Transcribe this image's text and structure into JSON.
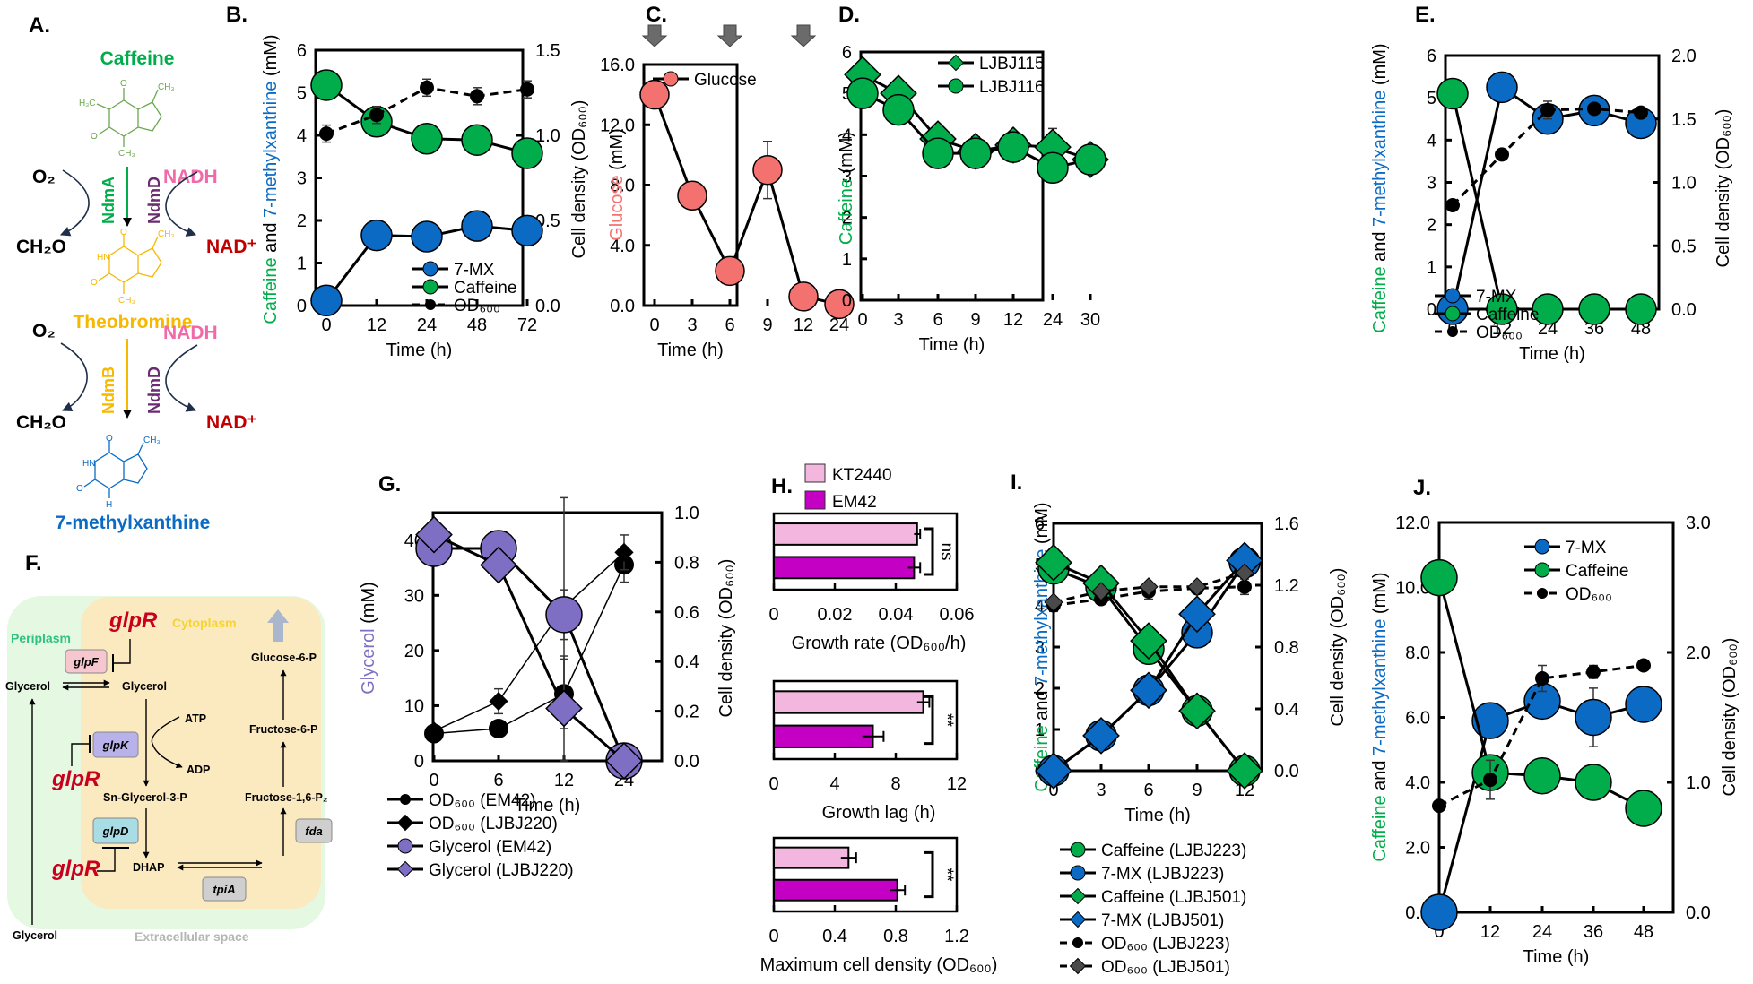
{
  "colors": {
    "caffeine": "#00ad4a",
    "mx": "#0b6bc4",
    "theobromine": "#f7b800",
    "nadh": "#f06aa8",
    "nad": "#c00000",
    "ndmD": "#6a2c70",
    "glucose": "#f3726f",
    "glycerol": "#7f6fc4",
    "kt2440": "#f3b6de",
    "em42": "#c400c4",
    "glpR": "#c8001e",
    "periplasm_bg": "#e5f8e2",
    "cytoplasm_bg": "#fbe9bf",
    "periplasm_text": "#2ec27e",
    "cytoplasm_text": "#f5d431",
    "extracellular_text": "#b5b5b5",
    "arrow_gray": "#6b6b6b"
  },
  "panel_a": {
    "label": "A.",
    "caffeine": "Caffeine",
    "theobromine": "Theobromine",
    "mx": "7-methylxanthine",
    "o2": "O₂",
    "ch2o": "CH₂O",
    "nadh": "NADH",
    "nad": "NAD⁺",
    "enzymes": [
      "NdmA",
      "NdmD",
      "NdmB",
      "NdmD"
    ],
    "atoms": {
      "o": "O",
      "n": "N",
      "ch3": "CH₃",
      "h3c": "H₃C",
      "hn": "HN",
      "h": "H"
    }
  },
  "panel_f": {
    "label": "F.",
    "periplasm": "Periplasm",
    "cytoplasm": "Cytoplasm",
    "extracellular": "Extracellular space",
    "glpR": "glpR",
    "genes": {
      "glpF": "glpF",
      "glpK": "glpK",
      "glpD": "glpD",
      "tpiA": "tpiA",
      "fda": "fda"
    },
    "metabolites": {
      "glycerol": "Glycerol",
      "atp": "ATP",
      "adp": "ADP",
      "g3p": "Sn-Glycerol-3-P",
      "dhap": "DHAP",
      "g6p": "Glucose-6-P",
      "f6p": "Fructose-6-P",
      "fbp": "Fructose-1,6-P₂"
    }
  },
  "chart_data": [
    {
      "id": "B",
      "label": "B.",
      "type": "line",
      "xlabel": "Time (h)",
      "ylabel_parts": [
        "Caffeine",
        " and ",
        "7-methylxanthine",
        " (mM)"
      ],
      "y2label": "Cell density (OD₆₀₀)",
      "categories": [
        "0",
        "12",
        "24",
        "48",
        "72"
      ],
      "ylim": [
        0,
        6
      ],
      "yticks": [
        "0",
        "1",
        "2",
        "3",
        "4",
        "5",
        "6"
      ],
      "y2lim": [
        0,
        1.5
      ],
      "y2ticks": [
        "0.0",
        "0.5",
        "1.0",
        "1.5"
      ],
      "legend_position": "bottom-right",
      "series": [
        {
          "name": "7-MX",
          "values": [
            0.12,
            1.65,
            1.62,
            1.87,
            1.76
          ],
          "color": "mx",
          "marker": "circle",
          "axis": "left"
        },
        {
          "name": "Caffeine",
          "values": [
            5.18,
            4.32,
            3.92,
            3.89,
            3.58
          ],
          "color": "caffeine",
          "marker": "circle",
          "axis": "left"
        },
        {
          "name": "OD₆₀₀",
          "values": [
            1.01,
            1.12,
            1.28,
            1.23,
            1.27
          ],
          "errors": [
            0.05,
            0.05,
            0.05,
            0.05,
            0.05
          ],
          "color": "black",
          "marker": "dot",
          "dash": true,
          "axis": "right"
        }
      ]
    },
    {
      "id": "C",
      "label": "C.",
      "type": "line",
      "xlabel": "Time (h)",
      "ylabel_parts": [
        "Glucose",
        " (mM)"
      ],
      "categories": [
        "0",
        "3",
        "6",
        "9",
        "12",
        "24"
      ],
      "ylim": [
        0,
        16
      ],
      "yticks": [
        "0.0",
        "4.0",
        "8.0",
        "12.0",
        "16.0"
      ],
      "feeding_arrows_at": [
        "0",
        "6",
        "12"
      ],
      "legend_position": "top-right",
      "series": [
        {
          "name": "Glucose",
          "values": [
            14.0,
            7.3,
            2.3,
            9.0,
            0.6,
            0.1
          ],
          "errors": [
            0,
            0,
            0,
            1.9,
            0,
            0
          ],
          "color": "glucose",
          "marker": "circle",
          "axis": "left"
        }
      ]
    },
    {
      "id": "D",
      "label": "D.",
      "type": "line",
      "xlabel": "Time (h)",
      "ylabel_parts": [
        "Caffeine",
        " (mM)"
      ],
      "categories": [
        "0",
        "3",
        "6",
        "9",
        "12",
        "24",
        "30"
      ],
      "ylim": [
        0,
        6
      ],
      "yticks": [
        "0",
        "1",
        "2",
        "3",
        "4",
        "5",
        "6"
      ],
      "legend_position": "top-right",
      "series": [
        {
          "name": "LJBJ115",
          "values": [
            5.45,
            5.0,
            3.9,
            3.6,
            3.75,
            3.7,
            3.4
          ],
          "errors": [
            0,
            0.25,
            0,
            0.35,
            0.1,
            0.45,
            0
          ],
          "color": "caffeine",
          "marker": "diamond"
        },
        {
          "name": "LJBJ116",
          "values": [
            5.0,
            4.6,
            3.55,
            3.55,
            3.7,
            3.2,
            3.4
          ],
          "errors": [
            0.15,
            0,
            0,
            0.3,
            0,
            0,
            0
          ],
          "color": "caffeine",
          "marker": "circle"
        }
      ]
    },
    {
      "id": "E",
      "label": "E.",
      "type": "line",
      "xlabel": "Time (h)",
      "ylabel_parts": [
        "Caffeine",
        " and ",
        "7-methylxanthine",
        " (mM)"
      ],
      "y2label": "Cell density (OD₆₀₀)",
      "categories": [
        "0",
        "12",
        "24",
        "36",
        "48"
      ],
      "ylim": [
        0,
        6
      ],
      "yticks": [
        "0",
        "1",
        "2",
        "3",
        "4",
        "5",
        "6"
      ],
      "y2lim": [
        0,
        2
      ],
      "y2ticks": [
        "0.0",
        "0.5",
        "1.0",
        "1.5",
        "2.0"
      ],
      "legend_position": "bottom-right",
      "series": [
        {
          "name": "7-MX",
          "values": [
            0,
            5.25,
            4.5,
            4.7,
            4.4
          ],
          "color": "mx",
          "marker": "circle",
          "axis": "left"
        },
        {
          "name": "Caffeine",
          "values": [
            5.1,
            0,
            0,
            0,
            0
          ],
          "color": "caffeine",
          "marker": "circle",
          "axis": "left"
        },
        {
          "name": "OD₆₀₀",
          "values": [
            0.82,
            1.22,
            1.57,
            1.58,
            1.55
          ],
          "errors": [
            0,
            0,
            0.07,
            0.03,
            0
          ],
          "color": "black",
          "marker": "dot",
          "dash": true,
          "axis": "right"
        }
      ]
    },
    {
      "id": "G",
      "label": "G.",
      "type": "line",
      "xlabel": "Time (h)",
      "ylabel_parts": [
        "Glycerol",
        " (mM)"
      ],
      "y2label": "Cell density (OD₆₀₀)",
      "categories": [
        "0",
        "6",
        "12",
        "24"
      ],
      "ylim": [
        0,
        45
      ],
      "yticks": [
        "0",
        "10",
        "20",
        "30",
        "40"
      ],
      "y2lim": [
        0,
        1.0
      ],
      "y2ticks": [
        "0.0",
        "0.2",
        "0.4",
        "0.6",
        "0.8",
        "1.0"
      ],
      "legend_position": "below",
      "series": [
        {
          "name": "OD₆₀₀ (EM42)",
          "values": [
            0.11,
            0.13,
            0.27,
            0.79
          ],
          "errors": [
            0,
            0,
            0.14,
            0.07
          ],
          "color": "black",
          "marker": "dot",
          "axis": "right"
        },
        {
          "name": "OD₆₀₀ (LJBJ220)",
          "values": [
            0.12,
            0.24,
            0.62,
            0.84
          ],
          "errors": [
            0,
            0.05,
            0.44,
            0.07
          ],
          "color": "black",
          "marker": "smalldiamond",
          "axis": "right"
        },
        {
          "name": "Glycerol (EM42)",
          "values": [
            38.5,
            38.5,
            26.5,
            0
          ],
          "errors": [
            0,
            0,
            4.5,
            0
          ],
          "color": "glycerol",
          "marker": "circle",
          "axis": "left"
        },
        {
          "name": "Glycerol (LJBJ220)",
          "values": [
            41,
            35.5,
            9.5,
            0
          ],
          "errors": [
            0,
            0,
            9.5,
            0
          ],
          "color": "glycerol",
          "marker": "diamond",
          "axis": "left"
        }
      ]
    },
    {
      "id": "H",
      "label": "H.",
      "type": "bar",
      "orientation": "horizontal",
      "legend": [
        {
          "name": "KT2440",
          "color": "kt2440"
        },
        {
          "name": "EM42",
          "color": "em42"
        }
      ],
      "subplots": [
        {
          "xlabel": "Growth rate (OD₆₀₀/h)",
          "xlim": [
            0,
            0.06
          ],
          "xticks": [
            "0",
            "0.02",
            "0.04",
            "0.06"
          ],
          "values": {
            "KT2440": 0.047,
            "EM42": 0.046
          },
          "errors": {
            "KT2440": 0.001,
            "EM42": 0.002
          },
          "significance": "ns"
        },
        {
          "xlabel": "Growth lag (h)",
          "xlim": [
            0,
            12
          ],
          "xticks": [
            "0",
            "4",
            "8",
            "12"
          ],
          "values": {
            "KT2440": 9.8,
            "EM42": 6.5
          },
          "errors": {
            "KT2440": 0.4,
            "EM42": 0.7
          },
          "significance": "**"
        },
        {
          "xlabel": "Maximum cell density (OD₆₀₀)",
          "xlim": [
            0,
            1.2
          ],
          "xticks": [
            "0",
            "0.4",
            "0.8",
            "1.2"
          ],
          "values": {
            "KT2440": 0.49,
            "EM42": 0.81
          },
          "errors": {
            "KT2440": 0.05,
            "EM42": 0.05
          },
          "significance": "**"
        }
      ]
    },
    {
      "id": "I",
      "label": "I.",
      "type": "line",
      "xlabel": "Time (h)",
      "ylabel_parts": [
        "Caffeine",
        " and ",
        "7-methylxanthine",
        " (mM)"
      ],
      "y2label": "Cell density (OD₆₀₀)",
      "categories": [
        "0",
        "3",
        "6",
        "9",
        "12"
      ],
      "ylim": [
        0,
        6
      ],
      "yticks": [
        "0",
        "1",
        "2",
        "3",
        "4",
        "5",
        "6"
      ],
      "y2lim": [
        0,
        1.6
      ],
      "y2ticks": [
        "0.0",
        "0.4",
        "0.8",
        "1.2",
        "1.6"
      ],
      "legend_position": "below",
      "series": [
        {
          "name": "Caffeine (LJBJ223)",
          "values": [
            4.9,
            4.45,
            2.95,
            1.45,
            0
          ],
          "color": "caffeine",
          "marker": "circle",
          "axis": "left"
        },
        {
          "name": "7-MX (LJBJ223)",
          "values": [
            0,
            0.85,
            1.95,
            3.35,
            5.05
          ],
          "color": "mx",
          "marker": "circle",
          "axis": "left"
        },
        {
          "name": "Caffeine (LJBJ501)",
          "values": [
            5.05,
            4.55,
            3.15,
            1.45,
            0
          ],
          "color": "caffeine",
          "marker": "diamond",
          "axis": "left"
        },
        {
          "name": "7-MX (LJBJ501)",
          "values": [
            0,
            0.85,
            1.95,
            3.8,
            5.1
          ],
          "color": "mx",
          "marker": "diamond",
          "axis": "left"
        },
        {
          "name": "OD₆₀₀ (LJBJ223)",
          "values": [
            1.07,
            1.11,
            1.16,
            1.18,
            1.19
          ],
          "errors": [
            0.04,
            0,
            0.05,
            0,
            0.05
          ],
          "color": "black",
          "marker": "dot",
          "dash": true,
          "axis": "right"
        },
        {
          "name": "OD₆₀₀ (LJBJ501)",
          "values": [
            1.09,
            1.16,
            1.19,
            1.19,
            1.28
          ],
          "color": "#4a4a4a",
          "marker": "smalldiamond",
          "dash": true,
          "axis": "right"
        }
      ]
    },
    {
      "id": "J",
      "label": "J.",
      "type": "line",
      "xlabel": "Time (h)",
      "ylabel_parts": [
        "Caffeine",
        " and ",
        "7-methylxanthine",
        " (mM)"
      ],
      "y2label": "Cell density (OD₆₀₀)",
      "categories": [
        "0",
        "12",
        "24",
        "36",
        "48"
      ],
      "ylim": [
        0,
        12
      ],
      "yticks": [
        "0.0",
        "2.0",
        "4.0",
        "6.0",
        "8.0",
        "10.0",
        "12.0"
      ],
      "y2lim": [
        0,
        3
      ],
      "y2ticks": [
        "0.0",
        "1.0",
        "2.0",
        "3.0"
      ],
      "legend_position": "top-right",
      "series": [
        {
          "name": "7-MX",
          "values": [
            0,
            5.9,
            6.5,
            6.0,
            6.4
          ],
          "errors": [
            0,
            0,
            0.4,
            0.9,
            0.4
          ],
          "color": "mx",
          "marker": "circle",
          "axis": "left"
        },
        {
          "name": "Caffeine",
          "values": [
            10.3,
            4.3,
            4.2,
            4.0,
            3.2
          ],
          "color": "caffeine",
          "marker": "circle",
          "axis": "left"
        },
        {
          "name": "OD₆₀₀",
          "values": [
            0.82,
            1.02,
            1.8,
            1.85,
            1.9
          ],
          "errors": [
            0,
            0.15,
            0.1,
            0.05,
            0
          ],
          "color": "black",
          "marker": "dot",
          "dash": true,
          "axis": "right"
        }
      ]
    }
  ]
}
